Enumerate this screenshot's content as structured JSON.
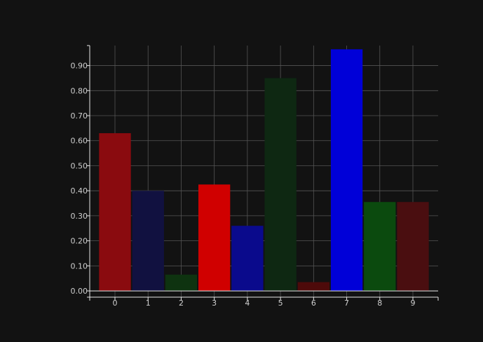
{
  "chart_data": {
    "type": "bar",
    "title": "",
    "xlabel": "",
    "ylabel": "",
    "categories": [
      "0",
      "1",
      "2",
      "3",
      "4",
      "5",
      "6",
      "7",
      "8",
      "9"
    ],
    "values": [
      0.63,
      0.4,
      0.065,
      0.425,
      0.26,
      0.85,
      0.035,
      0.965,
      0.355,
      0.355
    ],
    "bar_colors": [
      "#8a0b0f",
      "#111140",
      "#0e3310",
      "#d00000",
      "#0a0a8c",
      "#0e2812",
      "#4d0a0a",
      "#0000d8",
      "#0b4a0e",
      "#4a0e10"
    ],
    "ylim": [
      -0.025,
      0.98
    ],
    "y_ticks": [
      0.0,
      0.1,
      0.2,
      0.3,
      0.4,
      0.5,
      0.6,
      0.7,
      0.8,
      0.9
    ],
    "y_tick_labels": [
      "0.00",
      "0.10",
      "0.20",
      "0.30",
      "0.40",
      "0.50",
      "0.60",
      "0.70",
      "0.80",
      "0.90"
    ],
    "grid": true,
    "background": "#121212",
    "grid_color": "#555555",
    "axis_color": "#e6e6e6",
    "text_color": "#cfcfcf"
  }
}
